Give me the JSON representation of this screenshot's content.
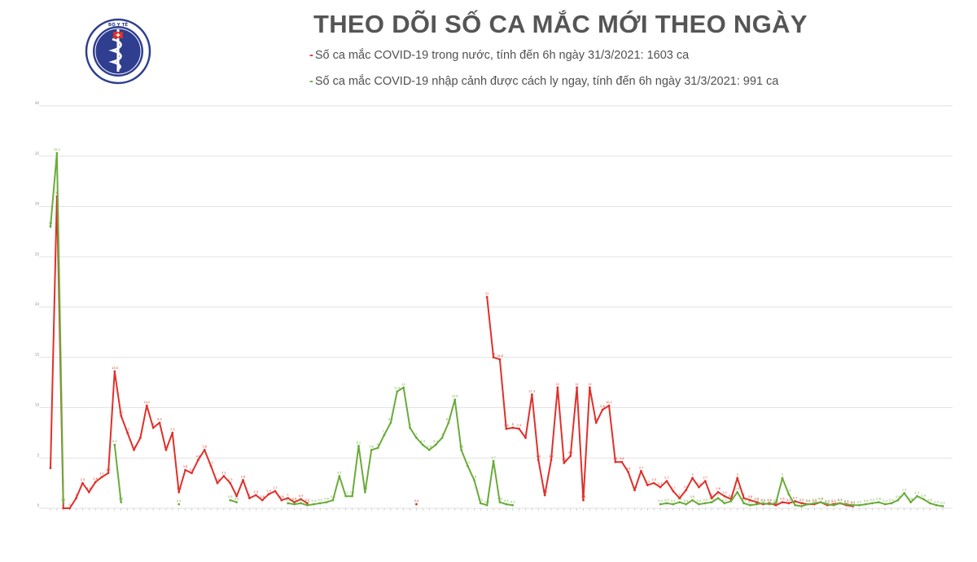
{
  "header": {
    "title": "THEO DÕI SỐ CA MẮC MỚI THEO NGÀY",
    "logo_text": "BỘ Y TẾ"
  },
  "legend": [
    {
      "marker": "-",
      "text": "Số ca mắc COVID-19 trong nước, tính đến 6h ngày 31/3/2021: 1603 ca",
      "color": "#e0302a"
    },
    {
      "marker": "-",
      "text": "Số ca mắc COVID-19 nhập cảnh được cách ly ngay, tính đến 6h ngày 31/3/2021: 991 ca",
      "color": "#6aab3a"
    }
  ],
  "colors": {
    "domestic": "#e0302a",
    "imported": "#6aab3a",
    "grid": "#d9d9d9",
    "logo": "#2f3e8f"
  },
  "chart_data": {
    "type": "line",
    "ylim": [
      0,
      40
    ],
    "yticks": [
      0,
      5,
      10,
      15,
      20,
      25,
      30,
      35,
      40
    ],
    "grid": true,
    "x_count": 140,
    "series": [
      {
        "name": "Số ca mắc COVID-19 trong nước",
        "points": [
          [
            0,
            4
          ],
          [
            1,
            31
          ],
          [
            2,
            0
          ],
          [
            3,
            0
          ],
          [
            4,
            1
          ],
          [
            5,
            2.5
          ],
          [
            6,
            1.6
          ],
          [
            7,
            2.6
          ],
          [
            8,
            3.1
          ],
          [
            9,
            3.5
          ],
          [
            10,
            13.6
          ],
          [
            11,
            9.2
          ],
          [
            12,
            7.5
          ],
          [
            13,
            5.8
          ],
          [
            14,
            7
          ],
          [
            15,
            10.2
          ],
          [
            16,
            8
          ],
          [
            17,
            8.5
          ],
          [
            18,
            5.8
          ],
          [
            19,
            7.5
          ],
          [
            20,
            1.6
          ],
          [
            21,
            3.8
          ],
          [
            22,
            3.5
          ],
          [
            23,
            4.8
          ],
          [
            24,
            5.8
          ],
          [
            25,
            4.2
          ],
          [
            26,
            2.5
          ],
          [
            27,
            3.2
          ],
          [
            28,
            2.5
          ],
          [
            29,
            1.2
          ],
          [
            30,
            2.8
          ],
          [
            31,
            1.0
          ],
          [
            32,
            1.3
          ],
          [
            33,
            0.8
          ],
          [
            34,
            1.4
          ],
          [
            35,
            1.7
          ],
          [
            36,
            0.8
          ],
          [
            37,
            1.0
          ],
          [
            38,
            0.6
          ],
          [
            39,
            0.9
          ],
          [
            40,
            0.5
          ],
          [
            57,
            0.4
          ],
          [
            68,
            21
          ],
          [
            69,
            15
          ],
          [
            70,
            14.8
          ],
          [
            71,
            7.9
          ],
          [
            72,
            8
          ],
          [
            73,
            7.9
          ],
          [
            74,
            7
          ],
          [
            75,
            11.3
          ],
          [
            76,
            4.8
          ],
          [
            77,
            1.3
          ],
          [
            78,
            4.8
          ],
          [
            79,
            12
          ],
          [
            80,
            4.5
          ],
          [
            81,
            5.2
          ],
          [
            82,
            12
          ],
          [
            83,
            0.8
          ],
          [
            84,
            12
          ],
          [
            85,
            8.5
          ],
          [
            86,
            9.8
          ],
          [
            87,
            10.2
          ],
          [
            88,
            4.6
          ],
          [
            89,
            4.6
          ],
          [
            90,
            3.6
          ],
          [
            91,
            1.8
          ],
          [
            92,
            3.7
          ],
          [
            93,
            2.3
          ],
          [
            94,
            2.5
          ],
          [
            95,
            2.1
          ],
          [
            96,
            2.7
          ],
          [
            97,
            1.7
          ],
          [
            98,
            1.0
          ],
          [
            99,
            1.8
          ],
          [
            100,
            3.0
          ],
          [
            101,
            2.1
          ],
          [
            102,
            2.7
          ],
          [
            103,
            1.0
          ],
          [
            104,
            1.6
          ],
          [
            105,
            1.2
          ],
          [
            106,
            0.9
          ],
          [
            107,
            3.0
          ],
          [
            108,
            1.0
          ],
          [
            109,
            0.8
          ],
          [
            110,
            0.6
          ],
          [
            111,
            0.4
          ],
          [
            112,
            0.5
          ],
          [
            113,
            0.3
          ],
          [
            114,
            0.6
          ],
          [
            115,
            0.5
          ],
          [
            116,
            0.7
          ],
          [
            117,
            0.5
          ],
          [
            118,
            0.4
          ],
          [
            119,
            0.4
          ],
          [
            120,
            0.6
          ],
          [
            121,
            0.3
          ],
          [
            122,
            0.4
          ],
          [
            123,
            0.5
          ],
          [
            124,
            0.3
          ],
          [
            125,
            0.2
          ]
        ]
      },
      {
        "name": "Số ca mắc COVID-19 nhập cảnh được cách ly ngay",
        "points": [
          [
            0,
            28
          ],
          [
            1,
            35.3
          ],
          [
            2,
            0.5
          ],
          [
            10,
            6.3
          ],
          [
            11,
            0.6
          ],
          [
            20,
            0.4
          ],
          [
            28,
            0.8
          ],
          [
            29,
            0.6
          ],
          [
            37,
            0.5
          ],
          [
            38,
            0.4
          ],
          [
            39,
            0.5
          ],
          [
            40,
            0.3
          ],
          [
            41,
            0.4
          ],
          [
            42,
            0.5
          ],
          [
            43,
            0.6
          ],
          [
            44,
            0.8
          ],
          [
            45,
            3.2
          ],
          [
            46,
            1.2
          ],
          [
            47,
            1.2
          ],
          [
            48,
            6.2
          ],
          [
            49,
            1.6
          ],
          [
            50,
            5.8
          ],
          [
            51,
            6
          ],
          [
            52,
            7.3
          ],
          [
            53,
            8.5
          ],
          [
            54,
            11.6
          ],
          [
            55,
            12
          ],
          [
            56,
            8
          ],
          [
            57,
            7
          ],
          [
            58,
            6.3
          ],
          [
            59,
            5.8
          ],
          [
            60,
            6.3
          ],
          [
            61,
            7
          ],
          [
            62,
            8.5
          ],
          [
            63,
            10.8
          ],
          [
            64,
            5.8
          ],
          [
            65,
            4.2
          ],
          [
            66,
            2.8
          ],
          [
            67,
            0.5
          ],
          [
            68,
            0.3
          ],
          [
            69,
            4.7
          ],
          [
            70,
            0.6
          ],
          [
            71,
            0.4
          ],
          [
            72,
            0.3
          ],
          [
            95,
            0.4
          ],
          [
            96,
            0.5
          ],
          [
            97,
            0.4
          ],
          [
            98,
            0.6
          ],
          [
            99,
            0.4
          ],
          [
            100,
            0.8
          ],
          [
            101,
            0.4
          ],
          [
            102,
            0.5
          ],
          [
            103,
            0.6
          ],
          [
            104,
            1.0
          ],
          [
            105,
            0.5
          ],
          [
            106,
            0.7
          ],
          [
            107,
            1.6
          ],
          [
            108,
            0.5
          ],
          [
            109,
            0.3
          ],
          [
            110,
            0.4
          ],
          [
            111,
            0.5
          ],
          [
            112,
            0.4
          ],
          [
            113,
            0.5
          ],
          [
            114,
            3.0
          ],
          [
            115,
            1.4
          ],
          [
            116,
            0.3
          ],
          [
            117,
            0.2
          ],
          [
            118,
            0.4
          ],
          [
            119,
            0.5
          ],
          [
            120,
            0.6
          ],
          [
            121,
            0.4
          ],
          [
            122,
            0.3
          ],
          [
            123,
            0.5
          ],
          [
            124,
            0.4
          ],
          [
            125,
            0.3
          ],
          [
            126,
            0.3
          ],
          [
            127,
            0.4
          ],
          [
            128,
            0.5
          ],
          [
            129,
            0.6
          ],
          [
            130,
            0.4
          ],
          [
            131,
            0.5
          ],
          [
            132,
            0.8
          ],
          [
            133,
            1.5
          ],
          [
            134,
            0.6
          ],
          [
            135,
            1.2
          ],
          [
            136,
            0.9
          ],
          [
            137,
            0.5
          ],
          [
            138,
            0.3
          ],
          [
            139,
            0.2
          ]
        ]
      }
    ]
  }
}
